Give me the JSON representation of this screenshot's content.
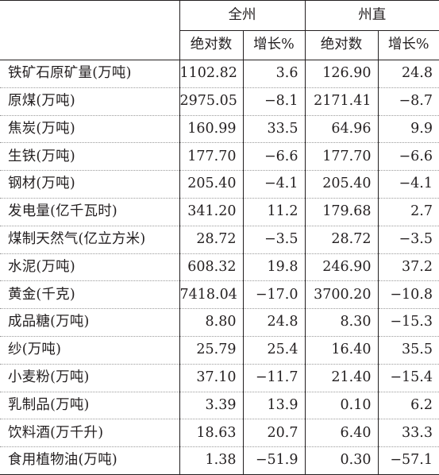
{
  "header": {
    "group_all": "全州",
    "group_direct": "州直",
    "sub_abs_1": "绝对数",
    "sub_growth_1": "增长%",
    "sub_abs_2": "绝对数",
    "sub_growth_2": "增长%"
  },
  "rows": [
    {
      "item": "铁矿石原矿量(万吨)",
      "all_abs": "1102.82",
      "all_growth": "3.6",
      "direct_abs": "126.90",
      "direct_growth": "24.8"
    },
    {
      "item": "原煤(万吨)",
      "all_abs": "2975.05",
      "all_growth": "−8.1",
      "direct_abs": "2171.41",
      "direct_growth": "−8.7"
    },
    {
      "item": "焦炭(万吨)",
      "all_abs": "160.99",
      "all_growth": "33.5",
      "direct_abs": "64.96",
      "direct_growth": "9.9"
    },
    {
      "item": "生铁(万吨)",
      "all_abs": "177.70",
      "all_growth": "−6.6",
      "direct_abs": "177.70",
      "direct_growth": "−6.6"
    },
    {
      "item": "钢材(万吨)",
      "all_abs": "205.40",
      "all_growth": "−4.1",
      "direct_abs": "205.40",
      "direct_growth": "−4.1"
    },
    {
      "item": "发电量(亿千瓦时)",
      "all_abs": "341.20",
      "all_growth": "11.2",
      "direct_abs": "179.68",
      "direct_growth": "2.7"
    },
    {
      "item": "煤制天然气(亿立方米)",
      "all_abs": "28.72",
      "all_growth": "−3.5",
      "direct_abs": "28.72",
      "direct_growth": "−3.5"
    },
    {
      "item": "水泥(万吨)",
      "all_abs": "608.32",
      "all_growth": "19.8",
      "direct_abs": "246.90",
      "direct_growth": "37.2"
    },
    {
      "item": "黄金(千克)",
      "all_abs": "7418.04",
      "all_growth": "−17.0",
      "direct_abs": "3700.20",
      "direct_growth": "−10.8"
    },
    {
      "item": "成品糖(万吨)",
      "all_abs": "8.80",
      "all_growth": "24.8",
      "direct_abs": "8.30",
      "direct_growth": "−15.3"
    },
    {
      "item": "纱(万吨)",
      "all_abs": "25.79",
      "all_growth": "25.4",
      "direct_abs": "16.40",
      "direct_growth": "35.5"
    },
    {
      "item": "小麦粉(万吨)",
      "all_abs": "37.10",
      "all_growth": "−11.7",
      "direct_abs": "21.40",
      "direct_growth": "−15.4"
    },
    {
      "item": "乳制品(万吨)",
      "all_abs": "3.39",
      "all_growth": "13.9",
      "direct_abs": "0.10",
      "direct_growth": "6.2"
    },
    {
      "item": "饮料酒(万千升)",
      "all_abs": "18.63",
      "all_growth": "20.7",
      "direct_abs": "6.40",
      "direct_growth": "33.3"
    },
    {
      "item": "食用植物油(万吨)",
      "all_abs": "1.38",
      "all_growth": "−51.9",
      "direct_abs": "0.30",
      "direct_growth": "−57.1"
    }
  ]
}
